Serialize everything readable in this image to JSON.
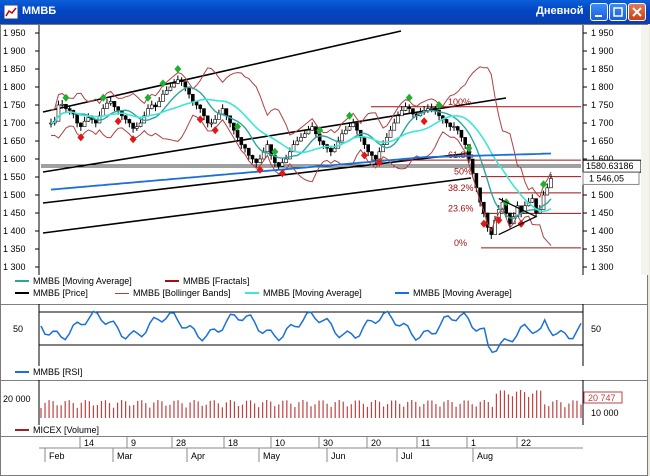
{
  "window": {
    "title": "ММВБ",
    "period": "Дневной"
  },
  "price_pane": {
    "y_ticks": [
      "1 950",
      "1 900",
      "1 850",
      "1 800",
      "1 750",
      "1 700",
      "1 650",
      "1 600",
      "1 550",
      "1 500",
      "1 450",
      "1 400",
      "1 350",
      "1 300"
    ],
    "right_ticks": [
      "1 950",
      "1 900",
      "1 850",
      "1 800",
      "1 750",
      "1 700",
      "1 650",
      "1 600",
      "1 550",
      "1 500",
      "1 450",
      "1 400",
      "1 350",
      "1 300"
    ],
    "current_price_box": "1580.63186",
    "last_price_label": "1 546,05",
    "fib_levels": [
      {
        "label": "100%",
        "value": 1745
      },
      {
        "label": "61.8%",
        "value": 1597
      },
      {
        "label": "50%",
        "value": 1551
      },
      {
        "label": "38.2%",
        "value": 1506
      },
      {
        "label": "23.6%",
        "value": 1449
      },
      {
        "label": "0%",
        "value": 1353
      }
    ]
  },
  "legends": {
    "row1": [
      {
        "label": "ММВБ [Moving Average]",
        "color": "#2aa5a0"
      },
      {
        "label": "ММВБ [Fractals]",
        "color": "#a01010"
      }
    ],
    "row2": [
      {
        "label": "ММВБ [Price]",
        "color": "#000000"
      },
      {
        "label": "ММВБ [Bollinger Bands]",
        "color": "#b04040"
      },
      {
        "label": "ММВБ [Moving Average]",
        "color": "#3ee6d8"
      },
      {
        "label": "ММВБ [Moving Average]",
        "color": "#1a70d8"
      }
    ],
    "rsi": {
      "label": "ММВБ [RSI]",
      "color": "#1a70d8"
    },
    "volume": {
      "label": "MICEX [Volume]",
      "color": "#a02020"
    }
  },
  "rsi_pane": {
    "left_tick": "50",
    "right_tick": "50"
  },
  "volume_pane": {
    "left_tick": "20 000",
    "right_tick": "10 000",
    "last_volume_box": "20 747"
  },
  "time_axis": {
    "day_labels": [
      "14",
      "9",
      "28",
      "18",
      "10",
      "30",
      "20",
      "11",
      "1",
      "22"
    ],
    "month_labels": [
      "Feb",
      "Mar",
      "Apr",
      "May",
      "Jun",
      "Jul",
      "Aug"
    ]
  },
  "colors": {
    "price": "#000000",
    "bollinger": "#b04040",
    "ma_fast": "#2aa5a0",
    "ma_mid": "#3ee6d8",
    "ma_slow": "#1a70d8",
    "fractal_up": "#20b030",
    "fractal_down": "#e01818",
    "channel": "#000000",
    "fib": "#a01010",
    "rsi": "#1a70d8",
    "volume": "#c04040"
  }
}
